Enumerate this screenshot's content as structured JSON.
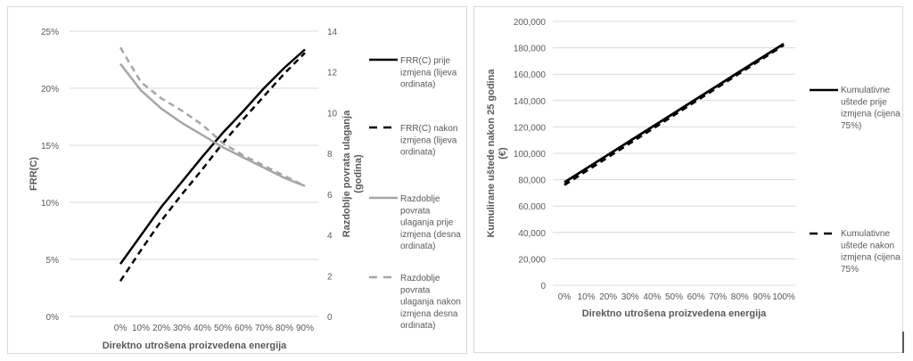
{
  "chart_data": [
    {
      "type": "line",
      "title": "",
      "xlabel": "Direktno utrošena proizvedena energija",
      "ylabel": "FRR(C)",
      "y2label": [
        "Razdoblje povrata ulaganja",
        "(godina)"
      ],
      "categories": [
        "0%",
        "10%",
        "20%",
        "30%",
        "40%",
        "50%",
        "60%",
        "70%",
        "80%",
        "90%"
      ],
      "ylim": [
        0,
        25
      ],
      "yticks": [
        "0%",
        "5%",
        "10%",
        "15%",
        "20%",
        "25%"
      ],
      "yticks_values": [
        0,
        5,
        10,
        15,
        20,
        25
      ],
      "y2lim": [
        0,
        14
      ],
      "y2ticks": [
        "0",
        "2",
        "4",
        "6",
        "8",
        "10",
        "12",
        "14"
      ],
      "y2ticks_values": [
        0,
        2,
        4,
        6,
        8,
        10,
        12,
        14
      ],
      "grid": true,
      "legend_position": "right",
      "series": [
        {
          "name": "FRR(C) prije izmjena (lijeva ordinata)",
          "legend_lines": [
            "FRR(C) prije",
            "izmjena (lijeva",
            "ordinata)"
          ],
          "axis": "left",
          "color": "#000000",
          "dash": "solid",
          "values": [
            4.6,
            7.1,
            9.6,
            11.8,
            14.0,
            16.1,
            18.0,
            20.0,
            21.8,
            23.4
          ]
        },
        {
          "name": "FRR(C) nakon izmjena (lijeva ordinata)",
          "legend_lines": [
            "FRR(C) nakon",
            "izmjena (lijeva",
            "ordinata)"
          ],
          "axis": "left",
          "color": "#000000",
          "dash": "dashed",
          "values": [
            3.1,
            5.8,
            8.4,
            10.7,
            12.9,
            15.2,
            17.3,
            19.3,
            21.3,
            23.1
          ]
        },
        {
          "name": "Razdoblje povrata ulaganja prije izmjena (desna ordinata)",
          "legend_lines": [
            "Razdoblje",
            "povrata",
            "ulaganja prije",
            "izmjena (desna",
            "ordinata)"
          ],
          "axis": "right",
          "color": "#a6a6a6",
          "dash": "solid",
          "values": [
            12.4,
            11.1,
            10.2,
            9.5,
            8.9,
            8.3,
            7.8,
            7.3,
            6.8,
            6.4
          ]
        },
        {
          "name": "Razdoblje povrata ulaganja nakon izmjena desna ordinata)",
          "legend_lines": [
            "Razdoblje",
            "povrata",
            "ulaganja nakon",
            "izmjena desna",
            "ordinata)"
          ],
          "axis": "right",
          "color": "#a6a6a6",
          "dash": "dashed",
          "values": [
            13.2,
            11.5,
            10.7,
            10.1,
            9.4,
            8.5,
            7.9,
            7.4,
            6.9,
            6.4
          ]
        }
      ]
    },
    {
      "type": "line",
      "title": "",
      "xlabel": "Direktno utrošena proizvedena energija",
      "ylabel": [
        "Kumulirane uštede nakon 25 godina",
        "(€)"
      ],
      "categories": [
        "0%",
        "10%",
        "20%",
        "30%",
        "40%",
        "50%",
        "60%",
        "70%",
        "80%",
        "90%",
        "100%"
      ],
      "ylim": [
        0,
        200000
      ],
      "yticks": [
        "0",
        "20,000",
        "40,000",
        "60,000",
        "80,000",
        "100,000",
        "120,000",
        "140,000",
        "160,000",
        "180,000",
        "200,000"
      ],
      "yticks_values": [
        0,
        20000,
        40000,
        60000,
        80000,
        100000,
        120000,
        140000,
        160000,
        180000,
        200000
      ],
      "grid": true,
      "legend_position": "right",
      "series": [
        {
          "name": "Kumulativne uštede prije izmjena (cijena 75%)",
          "legend_lines": [
            "Kumulativne",
            "uštede prije",
            "izmjena (cijena",
            "75%)"
          ],
          "color": "#000000",
          "dash": "solid",
          "values": [
            78000,
            88500,
            99000,
            109500,
            120000,
            130500,
            141000,
            151500,
            162000,
            172500,
            183000
          ]
        },
        {
          "name": "Kumulativne uštede nakon izmjena (cijena 75%",
          "legend_lines": [
            "Kumulativne",
            "uštede nakon",
            "izmjena (cijena",
            "75%"
          ],
          "color": "#000000",
          "dash": "dashed",
          "values": [
            76000,
            86600,
            97200,
            107800,
            118400,
            129000,
            139600,
            150200,
            160800,
            171400,
            182000
          ]
        }
      ]
    }
  ]
}
